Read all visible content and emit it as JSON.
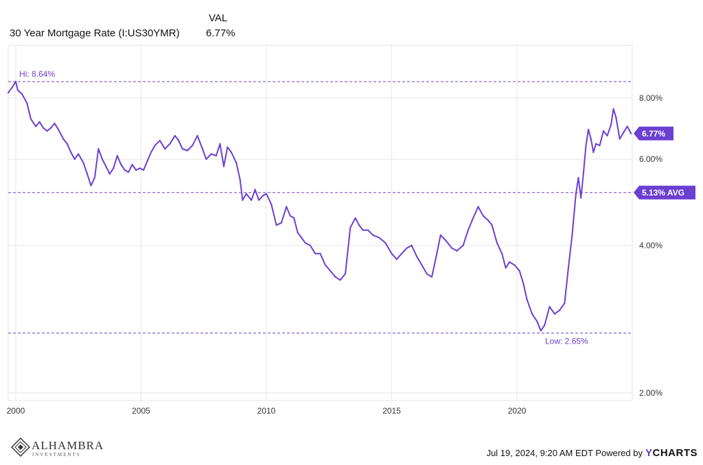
{
  "header": {
    "value_column_label": "VAL",
    "series_name": "30 Year Mortgage Rate (I:US30YMR)",
    "series_value": "6.77%"
  },
  "colors": {
    "series": "#6b3fd1",
    "reference_lines": "#6b3fd1",
    "badge": "#6b3fd1",
    "grid": "#e6e6e6"
  },
  "footer": {
    "logo_name": "ALHAMBRA",
    "logo_sub": "INVESTMENTS",
    "timestamp_text": "Jul 19, 2024, 9:20 AM EDT Powered by",
    "brand_y": "Y",
    "brand_rest": "CHARTS"
  },
  "chart_data": {
    "type": "line",
    "title": "",
    "xlabel": "",
    "ylabel": "",
    "scale": "log",
    "xlim": [
      1999.7,
      2024.6
    ],
    "ylim": [
      1.93,
      10.25
    ],
    "x_ticks": [
      2000,
      2005,
      2010,
      2015,
      2020
    ],
    "x_tick_labels": [
      "2000",
      "2005",
      "2010",
      "2015",
      "2020"
    ],
    "y_ticks": [
      2,
      4,
      6,
      8
    ],
    "y_tick_labels": [
      "2.00%",
      "4.00%",
      "6.00%",
      "8.00%"
    ],
    "grid": true,
    "series": [
      {
        "x": [
          1999.7,
          1999.85,
          2000.0,
          2000.08,
          2000.25,
          2000.45,
          2000.6,
          2000.8,
          2000.95,
          2001.1,
          2001.25,
          2001.4,
          2001.55,
          2001.7,
          2001.9,
          2002.05,
          2002.2,
          2002.35,
          2002.5,
          2002.7,
          2002.85,
          2003.0,
          2003.15,
          2003.3,
          2003.45,
          2003.6,
          2003.75,
          2003.9,
          2004.05,
          2004.2,
          2004.35,
          2004.5,
          2004.65,
          2004.8,
          2004.95,
          2005.1,
          2005.25,
          2005.4,
          2005.55,
          2005.75,
          2005.95,
          2006.15,
          2006.35,
          2006.5,
          2006.65,
          2006.85,
          2007.05,
          2007.25,
          2007.45,
          2007.6,
          2007.8,
          2008.0,
          2008.15,
          2008.3,
          2008.45,
          2008.6,
          2008.8,
          2008.95,
          2009.05,
          2009.2,
          2009.4,
          2009.55,
          2009.7,
          2009.85,
          2010.0,
          2010.2,
          2010.4,
          2010.6,
          2010.8,
          2010.95,
          2011.1,
          2011.25,
          2011.4,
          2011.55,
          2011.75,
          2011.95,
          2012.15,
          2012.35,
          2012.55,
          2012.75,
          2012.95,
          2013.15,
          2013.35,
          2013.55,
          2013.7,
          2013.85,
          2014.05,
          2014.25,
          2014.5,
          2014.75,
          2015.0,
          2015.2,
          2015.4,
          2015.6,
          2015.8,
          2016.0,
          2016.2,
          2016.4,
          2016.6,
          2016.8,
          2016.95,
          2017.15,
          2017.4,
          2017.6,
          2017.85,
          2018.05,
          2018.25,
          2018.45,
          2018.65,
          2018.85,
          2019.0,
          2019.2,
          2019.4,
          2019.55,
          2019.7,
          2019.9,
          2020.1,
          2020.25,
          2020.4,
          2020.6,
          2020.8,
          2020.95,
          2021.1,
          2021.3,
          2021.5,
          2021.7,
          2021.9,
          2022.05,
          2022.2,
          2022.35,
          2022.45,
          2022.55,
          2022.65,
          2022.75,
          2022.85,
          2022.95,
          2023.05,
          2023.15,
          2023.3,
          2023.45,
          2023.6,
          2023.75,
          2023.85,
          2023.95,
          2024.1,
          2024.25,
          2024.4,
          2024.55
        ],
        "values": [
          8.2,
          8.4,
          8.64,
          8.3,
          8.15,
          7.8,
          7.25,
          7.0,
          7.15,
          6.95,
          6.85,
          6.95,
          7.1,
          6.9,
          6.6,
          6.45,
          6.2,
          6.0,
          6.15,
          5.9,
          5.6,
          5.3,
          5.5,
          6.3,
          6.0,
          5.8,
          5.6,
          5.75,
          6.1,
          5.85,
          5.7,
          5.65,
          5.85,
          5.7,
          5.75,
          5.7,
          5.95,
          6.2,
          6.4,
          6.55,
          6.3,
          6.45,
          6.7,
          6.55,
          6.3,
          6.25,
          6.4,
          6.7,
          6.3,
          6.0,
          6.15,
          6.1,
          6.45,
          5.8,
          6.35,
          6.2,
          5.9,
          5.45,
          4.95,
          5.1,
          4.95,
          5.2,
          4.95,
          5.05,
          5.1,
          4.85,
          4.4,
          4.45,
          4.8,
          4.6,
          4.55,
          4.25,
          4.15,
          4.05,
          4.0,
          3.85,
          3.85,
          3.65,
          3.55,
          3.45,
          3.4,
          3.5,
          4.35,
          4.55,
          4.4,
          4.3,
          4.3,
          4.2,
          4.15,
          4.05,
          3.85,
          3.75,
          3.85,
          3.95,
          4.0,
          3.8,
          3.65,
          3.5,
          3.45,
          3.85,
          4.2,
          4.1,
          3.95,
          3.9,
          4.0,
          4.3,
          4.55,
          4.8,
          4.6,
          4.5,
          4.4,
          4.05,
          3.85,
          3.6,
          3.7,
          3.65,
          3.55,
          3.35,
          3.1,
          2.9,
          2.8,
          2.68,
          2.75,
          3.0,
          2.9,
          2.95,
          3.05,
          3.6,
          4.2,
          5.1,
          5.5,
          5.0,
          5.6,
          6.4,
          6.9,
          6.6,
          6.2,
          6.45,
          6.4,
          6.85,
          6.7,
          7.05,
          7.6,
          7.3,
          6.6,
          6.8,
          7.0,
          6.77
        ]
      }
    ],
    "reference_lines": [
      {
        "value": 8.64,
        "label": "Hi: 8.64%",
        "label_position": "left-above"
      },
      {
        "value": 5.13,
        "label": "5.13% AVG",
        "label_position": "right-badge"
      },
      {
        "value": 2.65,
        "label": "Low: 2.65%",
        "label_position": "low-below"
      }
    ],
    "last_value_badge": {
      "value": 6.77,
      "label": "6.77%"
    }
  }
}
